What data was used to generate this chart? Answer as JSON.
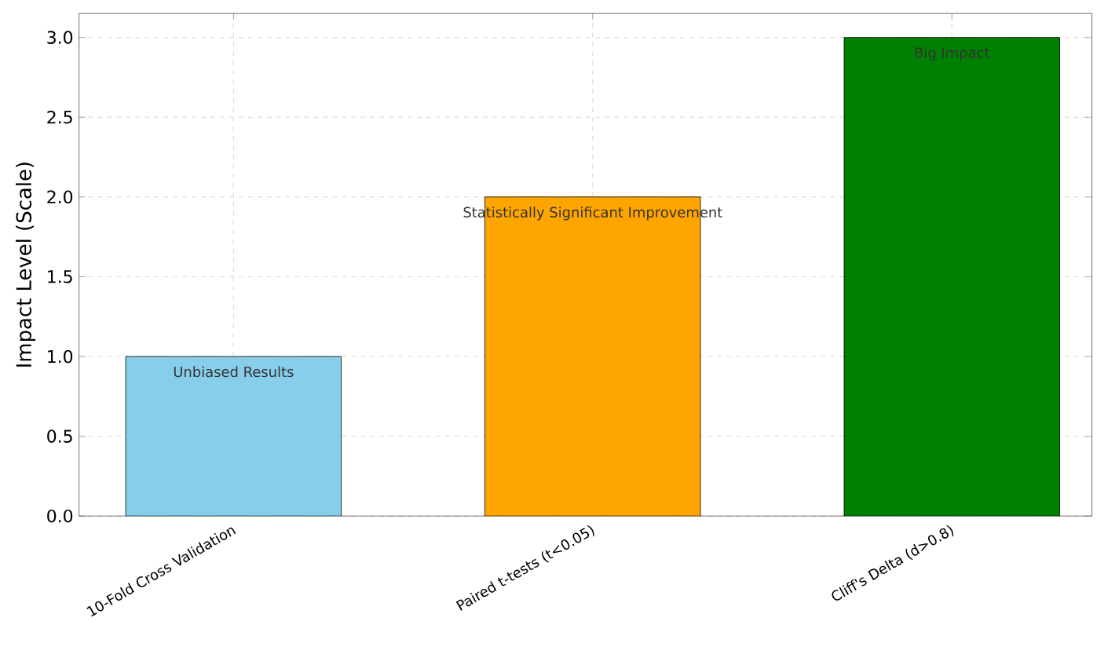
{
  "chart_data": {
    "type": "bar",
    "ylabel": "Impact Level (Scale)",
    "categories": [
      "10-Fold Cross Validation",
      "Paired t-tests (t<0.05)",
      "Cliff's Delta (d>0.8)"
    ],
    "values": [
      1,
      2,
      3
    ],
    "colors": [
      "#87ceeb",
      "#ffa500",
      "#008000"
    ],
    "ylim": [
      0,
      3.15
    ],
    "yticks": [
      {
        "value": 0,
        "label": "0.0"
      },
      0.5,
      {
        "value": 1,
        "label": "1.0"
      },
      1.5,
      {
        "value": 2,
        "label": "2.0"
      },
      2.5,
      {
        "value": 3,
        "label": "3.0"
      }
    ],
    "grid": true,
    "annotations": [
      {
        "text": "Unbiased Results",
        "x": "10-Fold Cross Validation",
        "y": 1
      },
      {
        "text": "Statistically Significant Improvement",
        "x": "Paired t-tests (t<0.05)",
        "y": 2
      },
      {
        "text": "Big Impact",
        "x": "Cliff's Delta (d>0.8)",
        "y": 3
      }
    ]
  }
}
